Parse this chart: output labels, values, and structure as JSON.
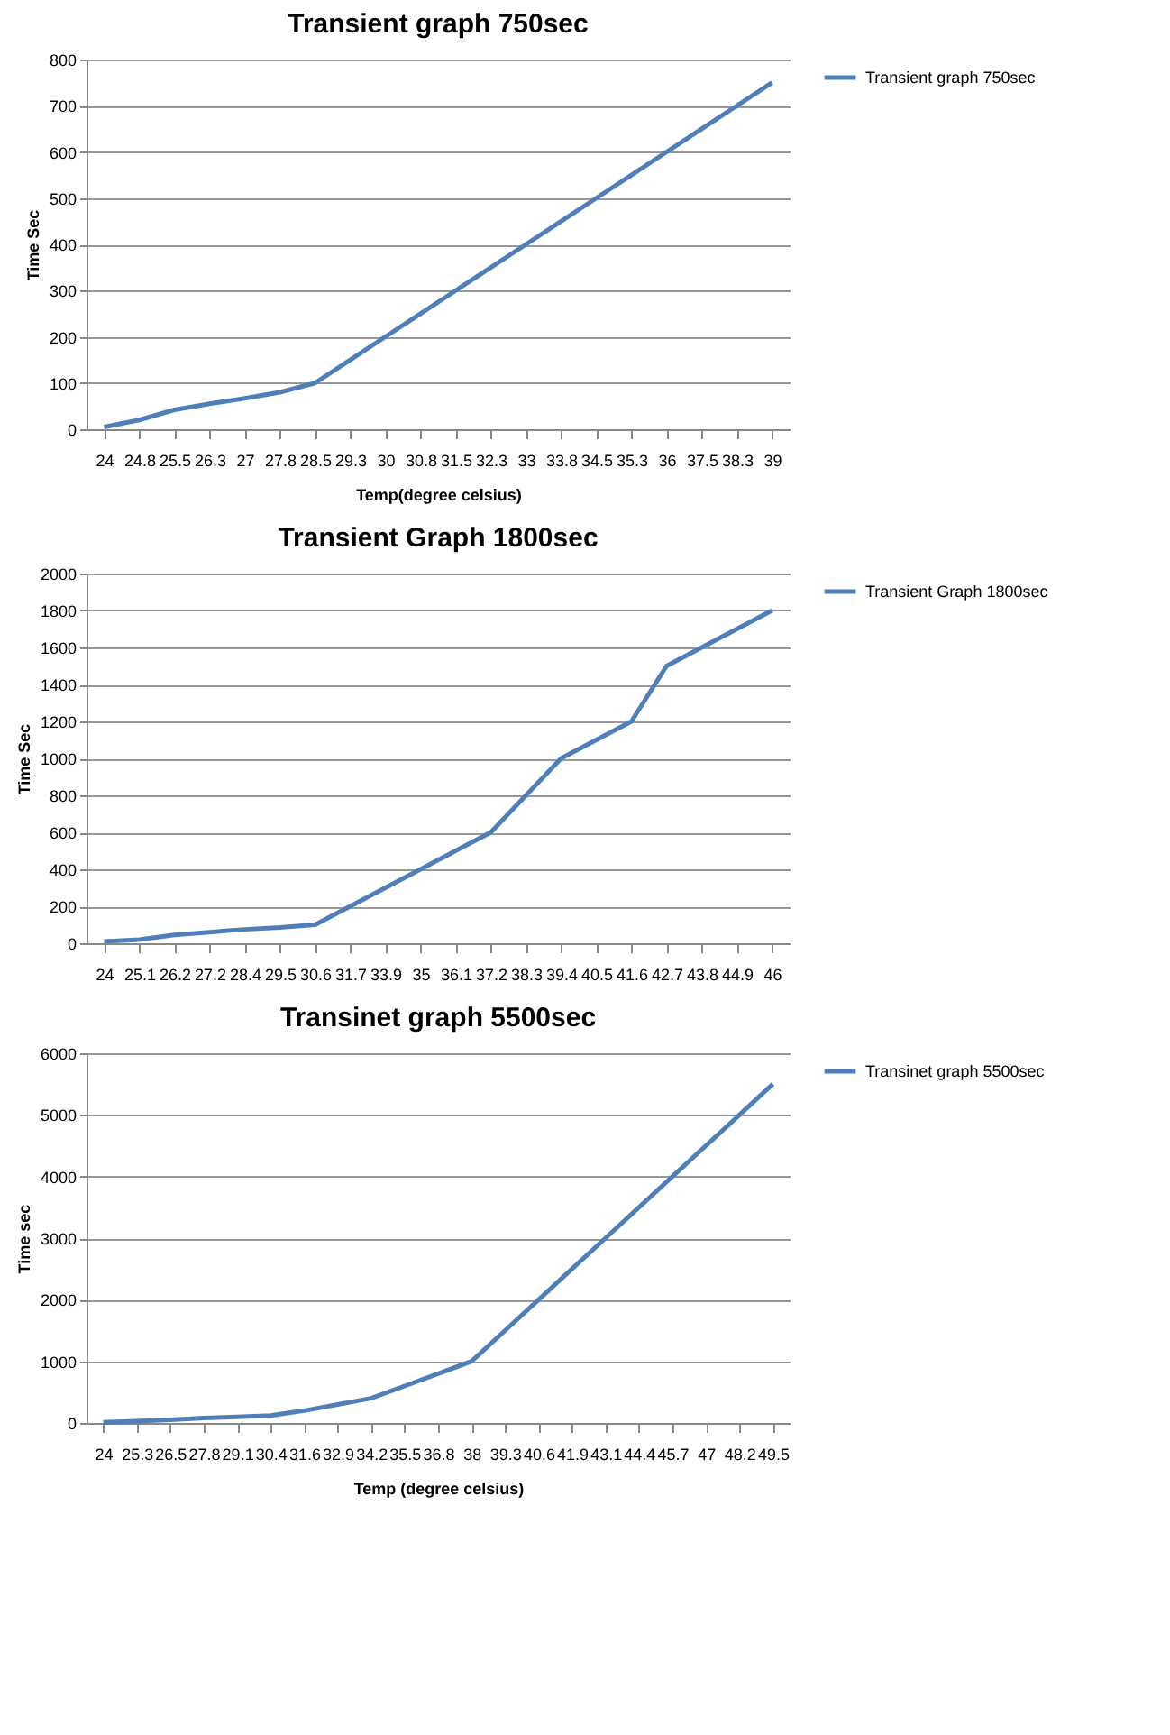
{
  "chart_data": [
    {
      "type": "line",
      "title": "Transient graph 750sec",
      "xlabel": "Temp(degree celsius)",
      "ylabel": "Time Sec",
      "categories": [
        "24",
        "24.8",
        "25.5",
        "26.3",
        "27",
        "27.8",
        "28.5",
        "29.3",
        "30",
        "30.8",
        "31.5",
        "32.3",
        "33",
        "33.8",
        "34.5",
        "35.3",
        "36",
        "37.5",
        "38.3",
        "39"
      ],
      "series": [
        {
          "name": "Transient graph 750sec",
          "color": "#4f7fb8",
          "values": [
            5,
            20,
            42,
            55,
            67,
            80,
            100,
            150,
            200,
            250,
            300,
            350,
            400,
            450,
            500,
            550,
            600,
            650,
            700,
            750
          ]
        }
      ],
      "ylim": [
        0,
        800
      ],
      "yticks": [
        0,
        100,
        200,
        300,
        400,
        500,
        600,
        700,
        800
      ],
      "grid": "y",
      "legend": "right",
      "marker": "none",
      "line_style": "solid"
    },
    {
      "type": "line",
      "title": "Transient Graph 1800sec",
      "ylabel": "Time Sec",
      "categories": [
        "24",
        "25.1",
        "26.2",
        "27.2",
        "28.4",
        "29.5",
        "30.6",
        "31.7",
        "33.9",
        "35",
        "36.1",
        "37.2",
        "38.3",
        "39.4",
        "40.5",
        "41.6",
        "42.7",
        "43.8",
        "44.9",
        "46"
      ],
      "series": [
        {
          "name": "Transient Graph 1800sec",
          "color": "#4f7fb8",
          "values": [
            10,
            20,
            45,
            60,
            75,
            85,
            100,
            200,
            300,
            400,
            500,
            600,
            800,
            1000,
            1100,
            1200,
            1500,
            1600,
            1700,
            1800
          ]
        }
      ],
      "ylim": [
        0,
        2000
      ],
      "yticks": [
        0,
        200,
        400,
        600,
        800,
        1000,
        1200,
        1400,
        1600,
        1800,
        2000
      ],
      "grid": "y",
      "legend": "right",
      "marker": "none",
      "line_style": "solid"
    },
    {
      "type": "line",
      "title": "Transinet graph 5500sec",
      "xlabel": "Temp (degree celsius)",
      "ylabel": "Time sec",
      "categories": [
        "24",
        "25.3",
        "26.5",
        "27.8",
        "29.1",
        "30.4",
        "31.6",
        "32.9",
        "34.2",
        "35.5",
        "36.8",
        "38",
        "39.3",
        "40.6",
        "41.9",
        "43.1",
        "44.4",
        "45.7",
        "47",
        "48.2",
        "49.5"
      ],
      "series": [
        {
          "name": "Transinet graph 5500sec",
          "color": "#4f7fb8",
          "values": [
            10,
            30,
            50,
            80,
            100,
            120,
            200,
            300,
            400,
            600,
            800,
            1000,
            1500,
            2000,
            2500,
            3000,
            3500,
            4000,
            4500,
            5000,
            5500
          ]
        }
      ],
      "ylim": [
        0,
        6000
      ],
      "yticks": [
        0,
        1000,
        2000,
        3000,
        4000,
        5000,
        6000
      ],
      "grid": "y",
      "legend": "right",
      "marker": "none",
      "line_style": "solid"
    }
  ]
}
